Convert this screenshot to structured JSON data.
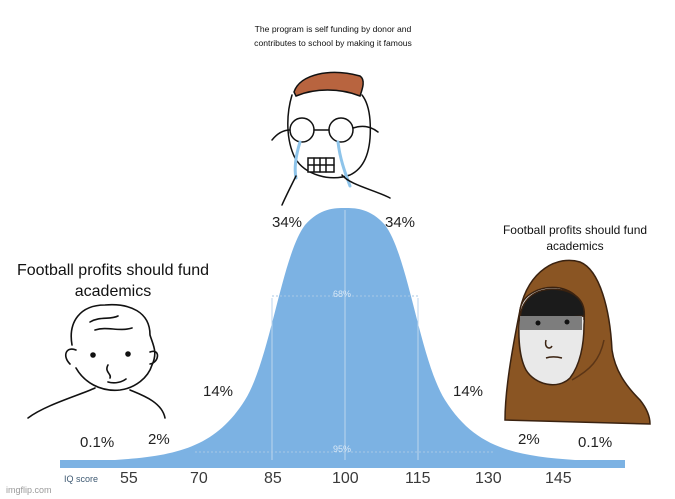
{
  "captions": {
    "top": "The program is self funding by donor and contributes to school by making it famous",
    "left": "Football profits should fund academics",
    "right": "Football profits should fund academics"
  },
  "percentages": {
    "left_far": "0.1%",
    "left_tail": "2%",
    "left_mid": "14%",
    "left_center": "34%",
    "right_center": "34%",
    "right_mid": "14%",
    "right_tail": "2%",
    "right_far": "0.1%"
  },
  "inner_labels": {
    "sixty_eight": "68%",
    "ninety_five": "95%"
  },
  "axis": {
    "label": "IQ score",
    "ticks": [
      "55",
      "70",
      "85",
      "100",
      "115",
      "130",
      "145"
    ]
  },
  "watermark": "imgflip.com",
  "colors": {
    "curve_fill": "#7cb2e3",
    "bar_fill": "#7cb2e3",
    "hood_brown": "#8a5523"
  },
  "characters": {
    "left": "simple-wojak-icon",
    "center": "crying-glasses-wojak-icon",
    "right": "hooded-monk-icon"
  }
}
